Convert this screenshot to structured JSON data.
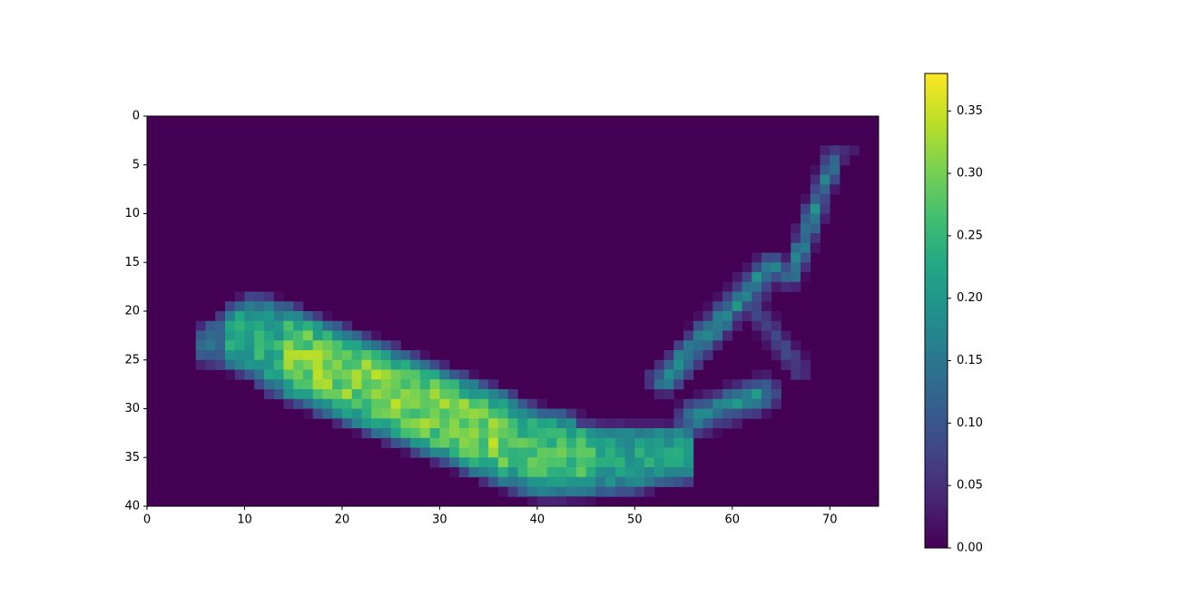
{
  "chart_data": {
    "type": "heatmap",
    "title": "",
    "xlabel": "",
    "ylabel": "",
    "colormap": "viridis",
    "xlim": [
      0,
      75
    ],
    "ylim": [
      40,
      0
    ],
    "y_axis_inverted": true,
    "x_ticks": [
      "0",
      "10",
      "20",
      "30",
      "40",
      "50",
      "60",
      "70"
    ],
    "y_ticks": [
      "0",
      "5",
      "10",
      "15",
      "20",
      "25",
      "30",
      "35",
      "40"
    ],
    "colorbar": {
      "range": [
        0.0,
        0.38
      ],
      "ticks": [
        "0.00",
        "0.05",
        "0.10",
        "0.15",
        "0.20",
        "0.25",
        "0.30",
        "0.35"
      ]
    },
    "grid": false,
    "shape": [
      40,
      75
    ],
    "note": "Banana-shaped intensity map; elongated body from x≈5 to x≈55 at y≈20–38, curving upward to a stem at x≈70, y≈3–10.",
    "regions": [
      {
        "x": [
          5,
          10
        ],
        "y": [
          19,
          25
        ],
        "value": 0.12
      },
      {
        "x": [
          10,
          20
        ],
        "y": [
          20,
          30
        ],
        "value": 0.22
      },
      {
        "x": [
          15,
          30
        ],
        "y": [
          23,
          33
        ],
        "value": 0.3
      },
      {
        "x": [
          22,
          26
        ],
        "y": [
          25,
          28
        ],
        "value": 0.36
      },
      {
        "x": [
          35,
          37
        ],
        "y": [
          30,
          32
        ],
        "value": 0.35
      },
      {
        "x": [
          30,
          45
        ],
        "y": [
          32,
          37
        ],
        "value": 0.3
      },
      {
        "x": [
          45,
          55
        ],
        "y": [
          34,
          37
        ],
        "value": 0.22
      },
      {
        "x": [
          50,
          60
        ],
        "y": [
          24,
          31
        ],
        "value": 0.08
      },
      {
        "x": [
          56,
          64
        ],
        "y": [
          15,
          24
        ],
        "value": 0.16
      },
      {
        "x": [
          58,
          63
        ],
        "y": [
          28,
          33
        ],
        "value": 0.18
      },
      {
        "x": [
          66,
          70
        ],
        "y": [
          19,
          26
        ],
        "value": 0.08
      },
      {
        "x": [
          68,
          72
        ],
        "y": [
          3,
          13
        ],
        "value": 0.14
      }
    ]
  }
}
